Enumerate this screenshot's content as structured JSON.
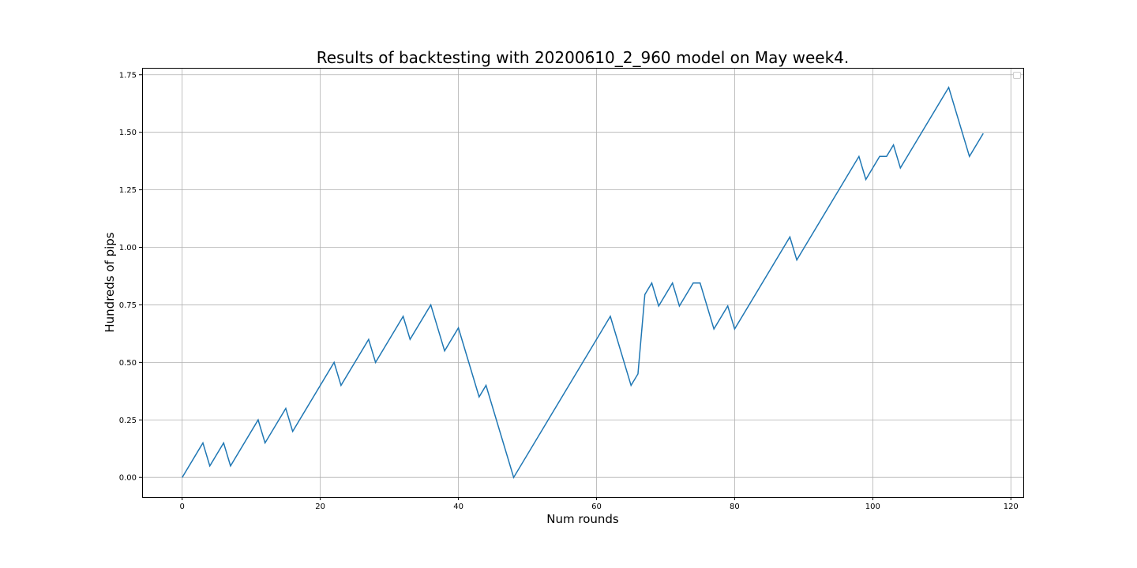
{
  "chart_data": {
    "type": "line",
    "title": "Results of backtesting with 20200610_2_960 model on May week4.",
    "xlabel": "Num rounds",
    "ylabel": "Hundreds of pips",
    "xlim": [
      -5.8,
      121.8
    ],
    "ylim": [
      -0.085,
      1.78
    ],
    "xticks": [
      0,
      20,
      40,
      60,
      80,
      100,
      120
    ],
    "xtick_labels": [
      "0",
      "20",
      "40",
      "60",
      "80",
      "100",
      "120"
    ],
    "yticks": [
      0.0,
      0.25,
      0.5,
      0.75,
      1.0,
      1.25,
      1.5,
      1.75
    ],
    "ytick_labels": [
      "0.00",
      "0.25",
      "0.50",
      "0.75",
      "1.00",
      "1.25",
      "1.50",
      "1.75"
    ],
    "grid": true,
    "legend": "top-right (empty)",
    "series": [
      {
        "color": "#1f77b4",
        "points": [
          [
            0,
            0.0
          ],
          [
            3,
            0.15
          ],
          [
            4,
            0.05
          ],
          [
            6,
            0.15
          ],
          [
            7,
            0.05
          ],
          [
            11,
            0.25
          ],
          [
            12,
            0.15
          ],
          [
            15,
            0.3
          ],
          [
            16,
            0.2
          ],
          [
            22,
            0.5
          ],
          [
            23,
            0.4
          ],
          [
            27,
            0.6
          ],
          [
            28,
            0.5
          ],
          [
            32,
            0.7
          ],
          [
            33,
            0.6
          ],
          [
            36,
            0.75
          ],
          [
            38,
            0.55
          ],
          [
            40,
            0.65
          ],
          [
            43,
            0.35
          ],
          [
            44,
            0.4
          ],
          [
            48,
            0.0
          ],
          [
            62,
            0.7
          ],
          [
            65,
            0.4
          ],
          [
            66,
            0.45
          ],
          [
            67,
            0.795
          ],
          [
            68,
            0.845
          ],
          [
            69,
            0.745
          ],
          [
            71,
            0.845
          ],
          [
            72,
            0.745
          ],
          [
            74,
            0.845
          ],
          [
            75,
            0.845
          ],
          [
            77,
            0.645
          ],
          [
            79,
            0.745
          ],
          [
            80,
            0.645
          ],
          [
            88,
            1.045
          ],
          [
            89,
            0.945
          ],
          [
            98,
            1.395
          ],
          [
            99,
            1.295
          ],
          [
            101,
            1.395
          ],
          [
            102,
            1.395
          ],
          [
            103,
            1.445
          ],
          [
            104,
            1.345
          ],
          [
            111,
            1.695
          ],
          [
            114,
            1.395
          ],
          [
            116,
            1.495
          ]
        ]
      }
    ]
  }
}
